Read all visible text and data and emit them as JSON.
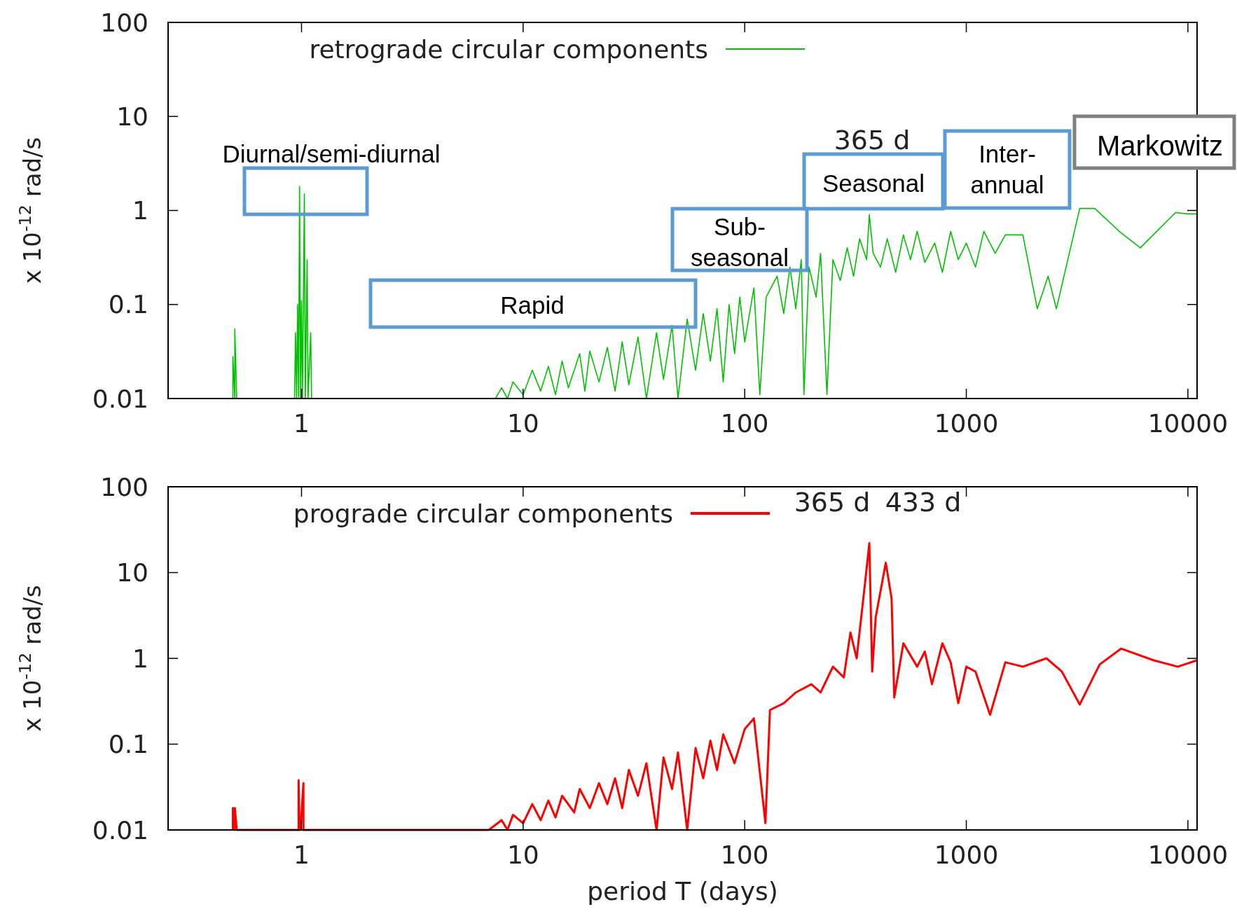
{
  "chart_data": [
    {
      "type": "line",
      "ylabel": "x 10$^{-12}$ rad/s",
      "log": "xy",
      "legend": "top",
      "grid": false,
      "xlim": [
        0.25,
        11000
      ],
      "xticks": [
        1,
        10,
        100,
        1000,
        10000
      ],
      "ylim": [
        0.01,
        100
      ],
      "yticks": [
        0.01,
        0.1,
        1,
        10,
        100
      ],
      "series": [
        {
          "name": "retrograde circular components",
          "color": "#00c000",
          "x": [
            0.49,
            0.49,
            0.5,
            0.5,
            0.51,
            0.93,
            0.94,
            0.95,
            0.96,
            0.97,
            0.98,
            0.99,
            1.0,
            1.01,
            1.03,
            1.04,
            1.06,
            1.07,
            1.1,
            1.11,
            7.5,
            8,
            8.5,
            9,
            10,
            11,
            12,
            13,
            14,
            15,
            16,
            18,
            19,
            20,
            22,
            24,
            26,
            28,
            30,
            33,
            36,
            40,
            43,
            47,
            50,
            55,
            60,
            65,
            70,
            75,
            80,
            85,
            90,
            95,
            100,
            110,
            117,
            125,
            140,
            150,
            160,
            170,
            180,
            185,
            195,
            210,
            220,
            235,
            250,
            270,
            290,
            310,
            330,
            355,
            365,
            380,
            410,
            440,
            480,
            520,
            560,
            600,
            650,
            720,
            780,
            850,
            920,
            1000,
            1100,
            1200,
            1350,
            1500,
            1800,
            2090,
            2340,
            2550,
            3250,
            3800,
            4900,
            6100,
            8800,
            10000,
            11000
          ],
          "values": [
            0.01,
            0.028,
            0.01,
            0.055,
            0.01,
            0.01,
            0.05,
            0.01,
            0.1,
            0.01,
            1.8,
            0.01,
            0.11,
            0.01,
            1.5,
            0.01,
            0.3,
            0.01,
            0.05,
            0.01,
            0.01,
            0.013,
            0.01,
            0.015,
            0.011,
            0.02,
            0.012,
            0.022,
            0.011,
            0.025,
            0.013,
            0.03,
            0.012,
            0.032,
            0.015,
            0.035,
            0.012,
            0.04,
            0.014,
            0.045,
            0.01,
            0.05,
            0.016,
            0.06,
            0.01,
            0.07,
            0.02,
            0.08,
            0.025,
            0.09,
            0.015,
            0.1,
            0.03,
            0.12,
            0.04,
            0.15,
            0.011,
            0.12,
            0.2,
            0.08,
            0.25,
            0.09,
            0.3,
            0.011,
            0.25,
            0.12,
            0.35,
            0.011,
            0.3,
            0.18,
            0.4,
            0.2,
            0.5,
            0.3,
            0.9,
            0.35,
            0.25,
            0.5,
            0.22,
            0.55,
            0.3,
            0.6,
            0.28,
            0.45,
            0.22,
            0.6,
            0.3,
            0.45,
            0.25,
            0.6,
            0.35,
            0.55,
            0.55,
            0.09,
            0.2,
            0.09,
            1.05,
            1.05,
            0.6,
            0.4,
            0.95,
            0.92,
            0.92
          ]
        }
      ],
      "annotations": [
        "Diurnal/semi-diurnal",
        "Rapid",
        "Sub-seasonal",
        "Seasonal",
        "Inter-annual",
        "Markowitz",
        "365 d"
      ]
    },
    {
      "type": "line",
      "xlabel": "period T (days)",
      "ylabel": "x 10$^{-12}$ rad/s",
      "log": "xy",
      "legend": "top",
      "grid": false,
      "xlim": [
        0.25,
        11000
      ],
      "xticks": [
        1,
        10,
        100,
        1000,
        10000
      ],
      "ylim": [
        0.01,
        100
      ],
      "yticks": [
        0.01,
        0.1,
        1,
        10,
        100
      ],
      "series": [
        {
          "name": "prograde circular components",
          "color": "#ff0000",
          "x": [
            0.49,
            0.49,
            0.5,
            0.5,
            0.51,
            0.97,
            0.97,
            0.98,
            0.99,
            1.02,
            1.02,
            1.03,
            7,
            8,
            8.5,
            9,
            10,
            11,
            12,
            13,
            14,
            15,
            17,
            18,
            20,
            22,
            24,
            26,
            28,
            30,
            33,
            36,
            40,
            43,
            47,
            50,
            55,
            60,
            65,
            70,
            75,
            80,
            90,
            100,
            110,
            124,
            130,
            150,
            170,
            200,
            220,
            250,
            280,
            300,
            320,
            350,
            365,
            376,
            390,
            433,
            460,
            473,
            520,
            600,
            650,
            700,
            780,
            850,
            920,
            1000,
            1100,
            1280,
            1500,
            1800,
            2300,
            2700,
            3250,
            4000,
            5000,
            7000,
            9000,
            11000
          ],
          "values": [
            0.01,
            0.018,
            0.01,
            0.018,
            0.01,
            0.01,
            0.038,
            0.01,
            0.01,
            0.035,
            0.01,
            0.01,
            0.01,
            0.013,
            0.01,
            0.015,
            0.012,
            0.02,
            0.013,
            0.022,
            0.014,
            0.025,
            0.016,
            0.03,
            0.018,
            0.035,
            0.02,
            0.04,
            0.018,
            0.05,
            0.025,
            0.06,
            0.01,
            0.07,
            0.03,
            0.08,
            0.01,
            0.09,
            0.04,
            0.11,
            0.05,
            0.13,
            0.06,
            0.15,
            0.2,
            0.012,
            0.25,
            0.3,
            0.4,
            0.5,
            0.4,
            0.8,
            0.6,
            2,
            1,
            8,
            22,
            0.7,
            3,
            13,
            5,
            0.35,
            1.5,
            0.8,
            1.2,
            0.5,
            1.5,
            0.9,
            0.3,
            0.8,
            0.7,
            0.22,
            0.9,
            0.8,
            1.0,
            0.7,
            0.29,
            0.85,
            1.3,
            0.95,
            0.8,
            0.95
          ]
        }
      ],
      "annotations": [
        "365 d",
        "433 d"
      ]
    }
  ]
}
